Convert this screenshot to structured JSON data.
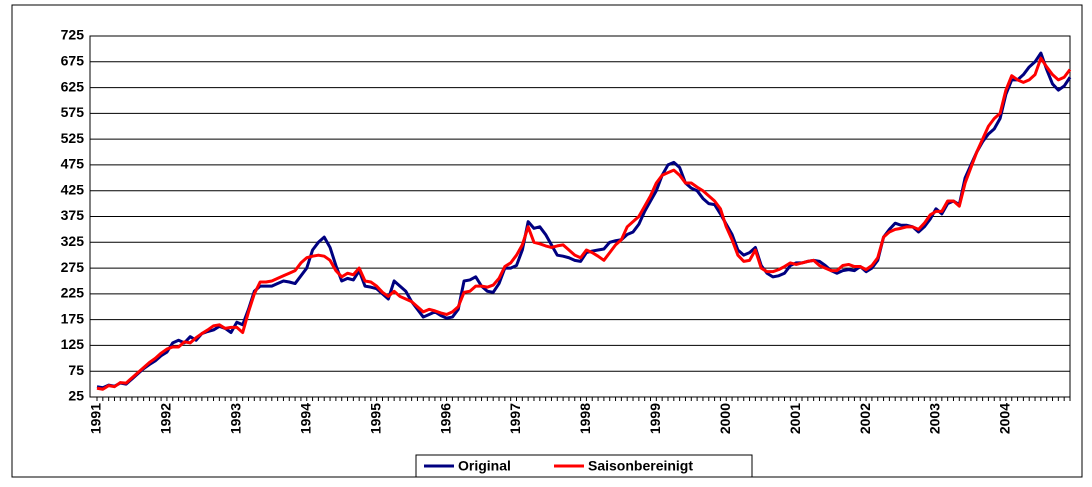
{
  "chart_data": {
    "type": "line",
    "categories": [
      "1991",
      null,
      null,
      null,
      null,
      null,
      null,
      null,
      null,
      null,
      null,
      null,
      "1992",
      null,
      null,
      null,
      null,
      null,
      null,
      null,
      null,
      null,
      null,
      null,
      "1993",
      null,
      null,
      null,
      null,
      null,
      null,
      null,
      null,
      null,
      null,
      null,
      "1994",
      null,
      null,
      null,
      null,
      null,
      null,
      null,
      null,
      null,
      null,
      null,
      "1995",
      null,
      null,
      null,
      null,
      null,
      null,
      null,
      null,
      null,
      null,
      null,
      "1996",
      null,
      null,
      null,
      null,
      null,
      null,
      null,
      null,
      null,
      null,
      null,
      "1997",
      null,
      null,
      null,
      null,
      null,
      null,
      null,
      null,
      null,
      null,
      null,
      "1998",
      null,
      null,
      null,
      null,
      null,
      null,
      null,
      null,
      null,
      null,
      null,
      "1999",
      null,
      null,
      null,
      null,
      null,
      null,
      null,
      null,
      null,
      null,
      null,
      "2000",
      null,
      null,
      null,
      null,
      null,
      null,
      null,
      null,
      null,
      null,
      null,
      "2001",
      null,
      null,
      null,
      null,
      null,
      null,
      null,
      null,
      null,
      null,
      null,
      "2002",
      null,
      null,
      null,
      null,
      null,
      null,
      null,
      null,
      null,
      null,
      null,
      "2003",
      null,
      null,
      null,
      null,
      null,
      null,
      null,
      null,
      null,
      null,
      null,
      "2004",
      null,
      null,
      null,
      null,
      null,
      null,
      null,
      null,
      null,
      null,
      null
    ],
    "series": [
      {
        "name": "Original",
        "color": "#000080",
        "values": [
          45,
          43,
          48,
          46,
          52,
          50,
          60,
          70,
          80,
          88,
          95,
          105,
          112,
          130,
          135,
          130,
          142,
          135,
          148,
          152,
          155,
          162,
          158,
          150,
          170,
          165,
          195,
          230,
          240,
          240,
          240,
          245,
          250,
          248,
          245,
          260,
          275,
          310,
          325,
          335,
          315,
          280,
          250,
          255,
          252,
          270,
          240,
          238,
          235,
          225,
          215,
          250,
          240,
          230,
          210,
          195,
          180,
          185,
          190,
          183,
          178,
          180,
          195,
          250,
          252,
          258,
          240,
          230,
          228,
          245,
          275,
          275,
          280,
          310,
          365,
          352,
          355,
          340,
          320,
          300,
          298,
          295,
          290,
          288,
          305,
          308,
          310,
          312,
          325,
          328,
          330,
          340,
          345,
          360,
          385,
          405,
          425,
          455,
          475,
          480,
          470,
          440,
          430,
          425,
          410,
          400,
          398,
          380,
          360,
          340,
          310,
          300,
          305,
          315,
          280,
          265,
          258,
          260,
          265,
          280,
          285,
          285,
          288,
          290,
          288,
          280,
          270,
          265,
          270,
          272,
          270,
          278,
          268,
          275,
          290,
          335,
          350,
          362,
          358,
          358,
          355,
          345,
          355,
          370,
          390,
          380,
          400,
          405,
          398,
          450,
          475,
          500,
          520,
          535,
          545,
          565,
          612,
          640,
          640,
          650,
          665,
          675,
          692,
          660,
          632,
          620,
          628,
          645
        ]
      },
      {
        "name": "Saisonbereinigt",
        "color": "#ff0000",
        "values": [
          42,
          40,
          47,
          45,
          53,
          52,
          62,
          72,
          82,
          92,
          100,
          110,
          118,
          122,
          122,
          132,
          130,
          140,
          148,
          155,
          163,
          165,
          158,
          160,
          160,
          150,
          190,
          225,
          248,
          248,
          250,
          255,
          260,
          265,
          270,
          285,
          295,
          298,
          300,
          298,
          290,
          270,
          258,
          265,
          262,
          275,
          250,
          248,
          240,
          228,
          220,
          230,
          220,
          215,
          210,
          200,
          190,
          195,
          192,
          188,
          185,
          190,
          200,
          228,
          230,
          240,
          240,
          238,
          242,
          255,
          278,
          285,
          300,
          320,
          355,
          325,
          322,
          318,
          315,
          318,
          320,
          310,
          300,
          295,
          310,
          305,
          298,
          290,
          305,
          320,
          330,
          355,
          365,
          375,
          395,
          415,
          440,
          455,
          460,
          465,
          455,
          440,
          440,
          432,
          425,
          415,
          405,
          390,
          355,
          330,
          300,
          288,
          290,
          310,
          275,
          268,
          268,
          272,
          278,
          285,
          282,
          285,
          288,
          290,
          280,
          275,
          270,
          270,
          280,
          282,
          278,
          278,
          272,
          280,
          295,
          335,
          345,
          350,
          352,
          355,
          355,
          350,
          362,
          378,
          385,
          385,
          405,
          405,
          395,
          440,
          470,
          500,
          525,
          550,
          565,
          575,
          620,
          648,
          640,
          635,
          640,
          650,
          682,
          665,
          650,
          640,
          645,
          660
        ]
      }
    ],
    "ylim": [
      25,
      725
    ],
    "yticks": [
      25,
      75,
      125,
      175,
      225,
      275,
      325,
      375,
      425,
      475,
      525,
      575,
      625,
      675,
      725
    ],
    "grid": true,
    "legend": "bottom"
  }
}
